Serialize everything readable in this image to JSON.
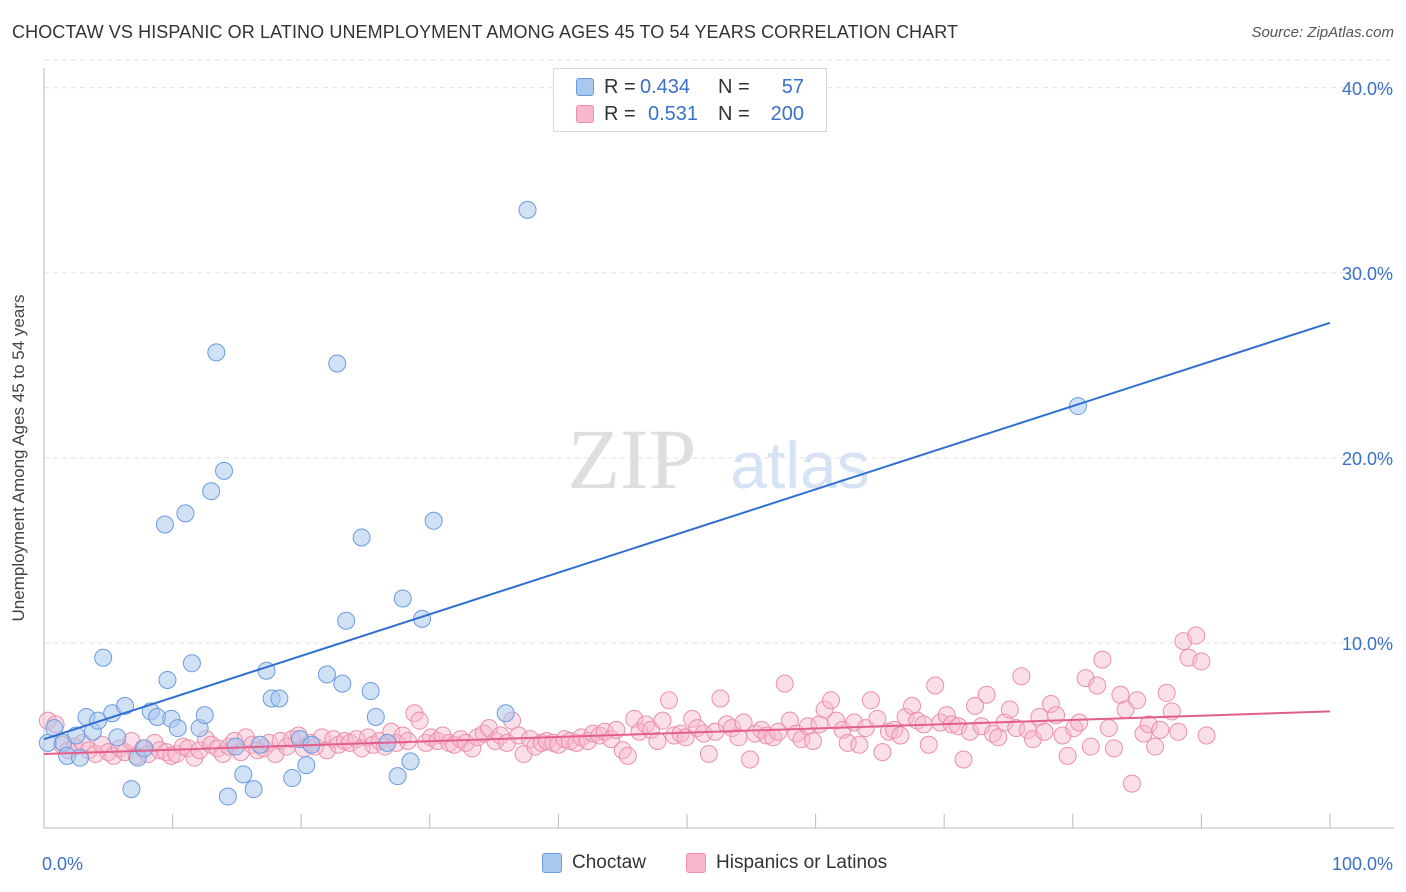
{
  "title": "CHOCTAW VS HISPANIC OR LATINO UNEMPLOYMENT AMONG AGES 45 TO 54 YEARS CORRELATION CHART",
  "source": "Source: ZipAtlas.com",
  "watermark": {
    "zip": "ZIP",
    "atlas": "atlas"
  },
  "legend": {
    "rows": [
      {
        "r_label": "R =",
        "r_value": "0.434",
        "n_label": "N =",
        "n_value": "57"
      },
      {
        "r_label": "R =",
        "r_value": "0.531",
        "n_label": "N =",
        "n_value": "200"
      }
    ]
  },
  "bottom_legend": {
    "series1": "Choctaw",
    "series2": "Hispanics or Latinos"
  },
  "colors": {
    "choctaw_fill": "#a9c8ee",
    "choctaw_stroke": "#6b9be0",
    "choctaw_line": "#2f6fd0",
    "hispanic_fill": "#f7b8cb",
    "hispanic_stroke": "#ec8fab",
    "hispanic_line": "#e25f8c",
    "axis_text": "#3a70c9",
    "grid": "#e2e2e2"
  },
  "chart_data": {
    "type": "scatter",
    "title": "CHOCTAW VS HISPANIC OR LATINO UNEMPLOYMENT AMONG AGES 45 TO 54 YEARS CORRELATION CHART",
    "xlabel": "",
    "ylabel": "Unemployment Among Ages 45 to 54 years",
    "xlim": [
      0,
      100
    ],
    "ylim": [
      0,
      41.5
    ],
    "x_tick_labels": [
      "0.0%",
      "100.0%"
    ],
    "y_ticks": [
      10,
      20,
      30,
      40
    ],
    "y_tick_labels": [
      "10.0%",
      "20.0%",
      "30.0%",
      "40.0%"
    ],
    "grid": true,
    "legend_position": "top-center",
    "series": [
      {
        "name": "Choctaw",
        "r": 0.434,
        "n": 57,
        "trend": {
          "x": [
            0,
            100
          ],
          "y": [
            4.8,
            27.3
          ]
        },
        "points": [
          [
            0.3,
            4.6
          ],
          [
            0.8,
            5.4
          ],
          [
            1.5,
            4.6
          ],
          [
            1.8,
            3.9
          ],
          [
            2.5,
            5.0
          ],
          [
            2.8,
            3.8
          ],
          [
            3.3,
            6.0
          ],
          [
            3.8,
            5.2
          ],
          [
            4.2,
            5.8
          ],
          [
            4.6,
            9.2
          ],
          [
            5.3,
            6.2
          ],
          [
            5.7,
            4.9
          ],
          [
            6.3,
            6.6
          ],
          [
            6.8,
            2.1
          ],
          [
            7.3,
            3.8
          ],
          [
            7.8,
            4.3
          ],
          [
            8.3,
            6.3
          ],
          [
            8.8,
            6.0
          ],
          [
            9.4,
            16.4
          ],
          [
            9.6,
            8.0
          ],
          [
            9.9,
            5.9
          ],
          [
            10.4,
            5.4
          ],
          [
            11.0,
            17.0
          ],
          [
            11.5,
            8.9
          ],
          [
            12.1,
            5.4
          ],
          [
            12.5,
            6.1
          ],
          [
            13.0,
            18.2
          ],
          [
            13.4,
            25.7
          ],
          [
            14.0,
            19.3
          ],
          [
            14.3,
            1.7
          ],
          [
            14.9,
            4.4
          ],
          [
            15.5,
            2.9
          ],
          [
            16.3,
            2.1
          ],
          [
            16.8,
            4.5
          ],
          [
            17.3,
            8.5
          ],
          [
            17.7,
            7.0
          ],
          [
            18.3,
            7.0
          ],
          [
            19.3,
            2.7
          ],
          [
            19.9,
            4.8
          ],
          [
            20.4,
            3.4
          ],
          [
            20.8,
            4.5
          ],
          [
            22.0,
            8.3
          ],
          [
            22.8,
            25.1
          ],
          [
            23.2,
            7.8
          ],
          [
            23.5,
            11.2
          ],
          [
            24.7,
            15.7
          ],
          [
            25.4,
            7.4
          ],
          [
            25.8,
            6.0
          ],
          [
            26.7,
            4.6
          ],
          [
            27.5,
            2.8
          ],
          [
            27.9,
            12.4
          ],
          [
            28.5,
            3.6
          ],
          [
            29.4,
            11.3
          ],
          [
            30.3,
            16.6
          ],
          [
            35.9,
            6.2
          ],
          [
            37.6,
            33.4
          ],
          [
            80.4,
            22.8
          ]
        ]
      },
      {
        "name": "Hispanics or Latinos",
        "r": 0.531,
        "n": 200,
        "trend": {
          "x": [
            0,
            100
          ],
          "y": [
            4.0,
            6.3
          ]
        },
        "points": [
          [
            0.3,
            5.8
          ],
          [
            0.9,
            5.6
          ],
          [
            1.4,
            4.5
          ],
          [
            1.9,
            4.2
          ],
          [
            2.4,
            4.4
          ],
          [
            3.0,
            4.6
          ],
          [
            3.5,
            4.2
          ],
          [
            4.0,
            4.0
          ],
          [
            4.5,
            4.5
          ],
          [
            5.0,
            4.1
          ],
          [
            5.4,
            3.9
          ],
          [
            5.9,
            4.3
          ],
          [
            6.3,
            4.1
          ],
          [
            6.8,
            4.7
          ],
          [
            7.2,
            3.9
          ],
          [
            7.7,
            4.3
          ],
          [
            8.1,
            4.0
          ],
          [
            8.6,
            4.6
          ],
          [
            9.0,
            4.2
          ],
          [
            9.5,
            4.1
          ],
          [
            9.9,
            3.9
          ],
          [
            10.3,
            4.0
          ],
          [
            10.8,
            4.4
          ],
          [
            11.2,
            4.3
          ],
          [
            11.7,
            3.8
          ],
          [
            12.1,
            4.2
          ],
          [
            12.6,
            4.8
          ],
          [
            13.0,
            4.5
          ],
          [
            13.5,
            4.3
          ],
          [
            13.9,
            4.0
          ],
          [
            14.4,
            4.4
          ],
          [
            14.8,
            4.7
          ],
          [
            15.3,
            4.1
          ],
          [
            15.7,
            4.9
          ],
          [
            16.2,
            4.5
          ],
          [
            16.6,
            4.2
          ],
          [
            17.1,
            4.3
          ],
          [
            17.5,
            4.6
          ],
          [
            18.0,
            4.0
          ],
          [
            18.4,
            4.7
          ],
          [
            18.9,
            4.4
          ],
          [
            19.3,
            4.8
          ],
          [
            19.8,
            5.0
          ],
          [
            20.2,
            4.3
          ],
          [
            20.7,
            4.6
          ],
          [
            21.1,
            4.4
          ],
          [
            21.6,
            4.9
          ],
          [
            22.0,
            4.2
          ],
          [
            22.5,
            4.8
          ],
          [
            22.9,
            4.5
          ],
          [
            23.4,
            4.7
          ],
          [
            23.8,
            4.6
          ],
          [
            24.3,
            4.8
          ],
          [
            24.7,
            4.3
          ],
          [
            25.2,
            4.9
          ],
          [
            25.6,
            4.5
          ],
          [
            26.1,
            4.7
          ],
          [
            26.5,
            4.4
          ],
          [
            27.0,
            5.2
          ],
          [
            27.4,
            4.6
          ],
          [
            27.9,
            5.0
          ],
          [
            28.3,
            4.7
          ],
          [
            28.8,
            6.2
          ],
          [
            29.2,
            5.8
          ],
          [
            29.7,
            4.6
          ],
          [
            30.1,
            4.9
          ],
          [
            30.6,
            4.7
          ],
          [
            31.0,
            5.0
          ],
          [
            31.5,
            4.6
          ],
          [
            31.9,
            4.5
          ],
          [
            32.4,
            4.8
          ],
          [
            32.8,
            4.6
          ],
          [
            33.3,
            4.3
          ],
          [
            33.7,
            4.9
          ],
          [
            34.2,
            5.1
          ],
          [
            34.6,
            5.4
          ],
          [
            35.1,
            4.7
          ],
          [
            35.5,
            5.0
          ],
          [
            36.0,
            4.6
          ],
          [
            36.4,
            5.8
          ],
          [
            36.9,
            5.0
          ],
          [
            37.3,
            4.0
          ],
          [
            37.8,
            4.8
          ],
          [
            38.2,
            4.4
          ],
          [
            38.7,
            4.6
          ],
          [
            39.1,
            4.7
          ],
          [
            39.6,
            4.6
          ],
          [
            40.0,
            4.5
          ],
          [
            40.5,
            4.8
          ],
          [
            40.9,
            4.7
          ],
          [
            41.4,
            4.6
          ],
          [
            41.8,
            4.9
          ],
          [
            42.3,
            4.7
          ],
          [
            42.7,
            5.1
          ],
          [
            43.2,
            5.0
          ],
          [
            43.6,
            5.2
          ],
          [
            44.1,
            4.8
          ],
          [
            44.5,
            5.3
          ],
          [
            45.0,
            4.2
          ],
          [
            45.4,
            3.9
          ],
          [
            45.9,
            5.9
          ],
          [
            46.3,
            5.2
          ],
          [
            46.8,
            5.6
          ],
          [
            47.2,
            5.3
          ],
          [
            47.7,
            4.7
          ],
          [
            48.1,
            5.8
          ],
          [
            48.6,
            6.9
          ],
          [
            49.0,
            5.0
          ],
          [
            49.5,
            5.1
          ],
          [
            49.9,
            4.9
          ],
          [
            50.4,
            5.9
          ],
          [
            50.8,
            5.4
          ],
          [
            51.3,
            5.1
          ],
          [
            51.7,
            4.0
          ],
          [
            52.2,
            5.2
          ],
          [
            52.6,
            7.0
          ],
          [
            53.1,
            5.6
          ],
          [
            53.5,
            5.4
          ],
          [
            54.0,
            4.9
          ],
          [
            54.4,
            5.7
          ],
          [
            54.9,
            3.7
          ],
          [
            55.3,
            5.1
          ],
          [
            55.8,
            5.3
          ],
          [
            56.2,
            5.0
          ],
          [
            56.7,
            4.9
          ],
          [
            57.1,
            5.2
          ],
          [
            57.6,
            7.8
          ],
          [
            58.0,
            5.8
          ],
          [
            58.5,
            5.1
          ],
          [
            58.9,
            4.8
          ],
          [
            59.4,
            5.5
          ],
          [
            59.8,
            4.7
          ],
          [
            60.3,
            5.6
          ],
          [
            60.7,
            6.4
          ],
          [
            61.2,
            6.9
          ],
          [
            61.6,
            5.8
          ],
          [
            62.1,
            5.3
          ],
          [
            62.5,
            4.6
          ],
          [
            63.0,
            5.7
          ],
          [
            63.4,
            4.5
          ],
          [
            63.9,
            5.4
          ],
          [
            64.3,
            6.9
          ],
          [
            64.8,
            5.9
          ],
          [
            65.2,
            4.1
          ],
          [
            65.7,
            5.2
          ],
          [
            66.1,
            5.3
          ],
          [
            66.6,
            5.0
          ],
          [
            67.0,
            6.0
          ],
          [
            67.5,
            6.6
          ],
          [
            67.9,
            5.8
          ],
          [
            68.4,
            5.6
          ],
          [
            68.8,
            4.5
          ],
          [
            69.3,
            7.7
          ],
          [
            69.7,
            5.7
          ],
          [
            70.2,
            6.1
          ],
          [
            70.6,
            5.6
          ],
          [
            71.1,
            5.5
          ],
          [
            71.5,
            3.7
          ],
          [
            72.0,
            5.2
          ],
          [
            72.4,
            6.6
          ],
          [
            72.9,
            5.5
          ],
          [
            73.3,
            7.2
          ],
          [
            73.8,
            5.1
          ],
          [
            74.2,
            4.9
          ],
          [
            74.7,
            5.7
          ],
          [
            75.1,
            6.4
          ],
          [
            75.6,
            5.4
          ],
          [
            76.0,
            8.2
          ],
          [
            76.5,
            5.3
          ],
          [
            76.9,
            4.8
          ],
          [
            77.4,
            6.0
          ],
          [
            77.8,
            5.2
          ],
          [
            78.3,
            6.7
          ],
          [
            78.7,
            6.1
          ],
          [
            79.2,
            5.0
          ],
          [
            79.6,
            3.9
          ],
          [
            80.1,
            5.4
          ],
          [
            80.5,
            5.7
          ],
          [
            81.0,
            8.1
          ],
          [
            81.4,
            4.4
          ],
          [
            81.9,
            7.7
          ],
          [
            82.3,
            9.1
          ],
          [
            82.8,
            5.4
          ],
          [
            83.2,
            4.3
          ],
          [
            83.7,
            7.2
          ],
          [
            84.1,
            6.4
          ],
          [
            84.6,
            2.4
          ],
          [
            85.0,
            6.9
          ],
          [
            85.5,
            5.1
          ],
          [
            85.9,
            5.6
          ],
          [
            86.4,
            4.4
          ],
          [
            86.8,
            5.3
          ],
          [
            87.3,
            7.3
          ],
          [
            87.7,
            6.3
          ],
          [
            88.2,
            5.2
          ],
          [
            88.6,
            10.1
          ],
          [
            89.0,
            9.2
          ],
          [
            89.6,
            10.4
          ],
          [
            90.0,
            9.0
          ],
          [
            90.4,
            5.0
          ]
        ]
      }
    ]
  }
}
